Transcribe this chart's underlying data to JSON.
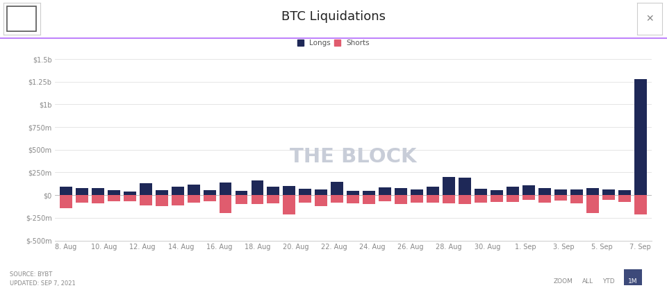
{
  "title": "BTC Liquidations",
  "source_text": "SOURCE: BYBT\nUPDATED: SEP 7, 2021",
  "watermark": "THE BLOCK",
  "bar_color_longs": "#1e2857",
  "bar_color_shorts": "#e05c6e",
  "bg_color": "#ffffff",
  "ylim": [
    -500,
    1500
  ],
  "ytick_vals": [
    -500,
    -250,
    0,
    250,
    500,
    750,
    1000,
    1250,
    1500
  ],
  "ytick_labels": [
    "$-500m",
    "$-250m",
    "$0",
    "$250m",
    "$500m",
    "$750m",
    "$1b",
    "$1.25b",
    "$1.5b"
  ],
  "date_labels": [
    "8. Aug",
    "10. Aug",
    "12. Aug",
    "14. Aug",
    "16. Aug",
    "18. Aug",
    "20. Aug",
    "22. Aug",
    "24. Aug",
    "26. Aug",
    "28. Aug",
    "30. Aug",
    "1. Sep",
    "3. Sep",
    "5. Sep",
    "7. Sep"
  ],
  "longs": [
    90,
    75,
    80,
    55,
    40,
    130,
    55,
    90,
    115,
    55,
    140,
    45,
    160,
    95,
    100,
    70,
    60,
    150,
    50,
    50,
    85,
    80,
    60,
    90,
    200,
    190,
    70,
    55,
    95,
    105,
    75,
    60,
    60,
    75,
    65,
    55,
    1280
  ],
  "shorts": [
    -145,
    -85,
    -90,
    -65,
    -70,
    -110,
    -120,
    -115,
    -80,
    -70,
    -195,
    -100,
    -95,
    -90,
    -210,
    -80,
    -120,
    -80,
    -90,
    -100,
    -65,
    -100,
    -80,
    -80,
    -90,
    -100,
    -85,
    -75,
    -75,
    -55,
    -80,
    -60,
    -90,
    -200,
    -55,
    -75,
    -215
  ],
  "purple_line": "#c084fc",
  "grid_color": "#e0e0e0",
  "tick_label_color": "#888888",
  "title_color": "#222222"
}
